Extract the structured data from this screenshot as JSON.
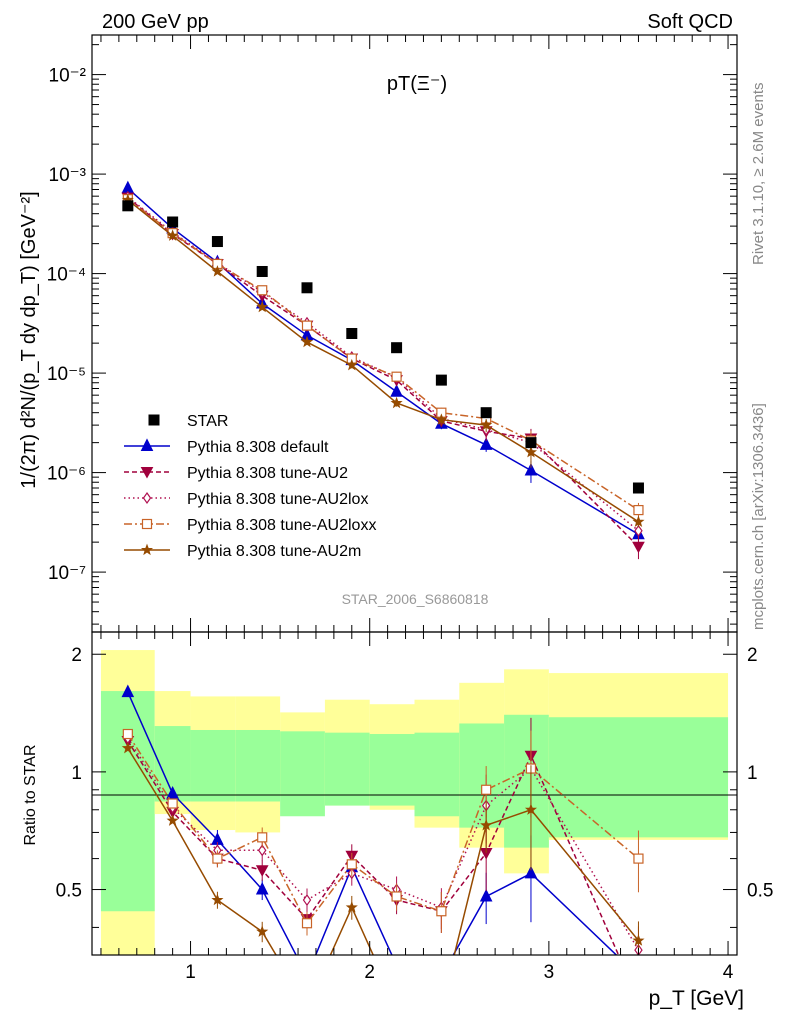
{
  "header": {
    "left": "200 GeV pp",
    "right": "Soft QCD"
  },
  "side_labels": {
    "rivet": "Rivet 3.1.10, ≥ 2.6M events",
    "mcplots": "mcplots.cern.ch [arXiv:1306.3436]"
  },
  "main_title": "pT(Ξ⁻)",
  "analysis_id": "STAR_2006_S6860818",
  "y_axis_label": "1/(2π) d²N/(p_T dy dp_T) [GeV⁻²]",
  "ratio_axis_label": "Ratio to STAR",
  "x_axis_label": "p_T [GeV]",
  "legend": [
    "STAR",
    "Pythia 8.308 default",
    "Pythia 8.308 tune-AU2",
    "Pythia 8.308 tune-AU2lox",
    "Pythia 8.308 tune-AU2loxx",
    "Pythia 8.308 tune-AU2m"
  ],
  "chart_data": {
    "type": "scatter",
    "x_range": [
      0.45,
      4.05
    ],
    "y_range_log": [
      2.5e-08,
      0.025
    ],
    "ratio_range": [
      0.34,
      2.28
    ],
    "log_y": true,
    "grid": false,
    "legend_position": "bottom-left",
    "y_tick_labels": [
      "10⁻⁷",
      "10⁻⁶",
      "10⁻⁵",
      "10⁻⁴",
      "10⁻³",
      "10⁻²"
    ],
    "y_ticks": [
      1e-07,
      1e-06,
      1e-05,
      0.0001,
      0.001,
      0.01
    ],
    "x_ticks": [
      1,
      2,
      3,
      4
    ],
    "x_tick_labels": [
      "1",
      "2",
      "3",
      "4"
    ],
    "ratio_ticks": [
      0.5,
      1,
      2
    ],
    "ratio_tick_labels": [
      "0.5",
      "1",
      "2"
    ],
    "star": {
      "name": "STAR",
      "color": "#000000",
      "x": [
        0.65,
        0.9,
        1.15,
        1.4,
        1.65,
        1.9,
        2.15,
        2.4,
        2.65,
        2.9,
        3.5
      ],
      "y": [
        0.00048,
        0.00033,
        0.00021,
        0.000105,
        7.2e-05,
        2.5e-05,
        1.8e-05,
        8.5e-06,
        4e-06,
        2e-06,
        7e-07
      ]
    },
    "bins": [
      0.5,
      0.8,
      1.0,
      1.25,
      1.5,
      1.75,
      2.0,
      2.25,
      2.5,
      2.75,
      3.0,
      4.0
    ],
    "band_green": [
      [
        0.44,
        1.61
      ],
      [
        0.84,
        1.31
      ],
      [
        0.84,
        1.28
      ],
      [
        0.84,
        1.28
      ],
      [
        0.77,
        1.27
      ],
      [
        0.82,
        1.26
      ],
      [
        0.82,
        1.25
      ],
      [
        0.77,
        1.26
      ],
      [
        0.72,
        1.33
      ],
      [
        0.64,
        1.4
      ],
      [
        0.68,
        1.38
      ]
    ],
    "band_yellow": [
      [
        0.27,
        2.05
      ],
      [
        0.78,
        1.61
      ],
      [
        0.71,
        1.56
      ],
      [
        0.7,
        1.56
      ],
      [
        0.87,
        1.42
      ],
      [
        0.82,
        1.53
      ],
      [
        0.8,
        1.49
      ],
      [
        0.72,
        1.53
      ],
      [
        0.64,
        1.69
      ],
      [
        0.55,
        1.83
      ],
      [
        0.67,
        1.79
      ]
    ],
    "series": [
      {
        "name": "Pythia 8.308 default",
        "color": "#0000cc",
        "dash": "",
        "marker": "triangle-up",
        "filled": true,
        "x": [
          0.65,
          0.9,
          1.15,
          1.4,
          1.65,
          1.9,
          2.15,
          2.4,
          2.65,
          2.9,
          3.5
        ],
        "y": [
          0.00072,
          0.000285,
          0.00013,
          5e-05,
          2.4e-05,
          1.35e-05,
          6.5e-06,
          3.1e-06,
          1.9e-06,
          1.05e-06,
          2.4e-07
        ],
        "err": [
          0,
          0,
          0.06,
          0.06,
          0,
          0.05,
          0.06,
          0.12,
          0.15,
          0.25,
          0.08
        ],
        "ratio": [
          1.6,
          0.88,
          0.67,
          0.5,
          0.3,
          0.57,
          0.32,
          0.3,
          0.48,
          0.55,
          0.3
        ]
      },
      {
        "name": "Pythia 8.308 tune-AU2",
        "color": "#a0003c",
        "dash": "5,3",
        "marker": "triangle-down",
        "filled": true,
        "x": [
          0.65,
          0.9,
          1.15,
          1.4,
          1.65,
          1.9,
          2.15,
          2.4,
          2.65,
          2.9,
          3.5
        ],
        "y": [
          0.00058,
          0.00025,
          0.000125,
          6e-05,
          3e-05,
          1.4e-05,
          8.5e-06,
          3.3e-06,
          2.6e-06,
          2.2e-06,
          1.8e-07
        ],
        "err": [
          0,
          0,
          0.05,
          0.06,
          0.07,
          0.07,
          0.08,
          0.12,
          0.2,
          0.25,
          0.25
        ],
        "ratio": [
          1.2,
          0.79,
          0.6,
          0.56,
          0.42,
          0.61,
          0.47,
          0.44,
          0.62,
          1.1,
          0.26
        ]
      },
      {
        "name": "Pythia 8.308 tune-AU2lox",
        "color": "#b01050",
        "dash": "1.5,3",
        "marker": "diamond",
        "filled": false,
        "x": [
          0.65,
          0.9,
          1.15,
          1.4,
          1.65,
          1.9,
          2.15,
          2.4,
          2.65,
          2.9,
          3.5
        ],
        "y": [
          0.00059,
          0.00026,
          0.000128,
          6.5e-05,
          3.2e-05,
          1.45e-05,
          9e-06,
          3.5e-06,
          2.7e-06,
          2e-06,
          2.6e-07
        ],
        "err": [
          0,
          0,
          0.05,
          0.06,
          0.07,
          0.07,
          0.08,
          0.12,
          0.2,
          0.25,
          0.15
        ],
        "ratio": [
          1.22,
          0.81,
          0.63,
          0.63,
          0.47,
          0.55,
          0.5,
          0.45,
          0.82,
          1.02,
          0.35
        ]
      },
      {
        "name": "Pythia 8.308 tune-AU2loxx",
        "color": "#c86428",
        "dash": "8,3,2,3",
        "marker": "square",
        "filled": false,
        "x": [
          0.65,
          0.9,
          1.15,
          1.4,
          1.65,
          1.9,
          2.15,
          2.4,
          2.65,
          2.9,
          3.5
        ],
        "y": [
          0.00056,
          0.000255,
          0.000125,
          6.8e-05,
          3e-05,
          1.4e-05,
          9.2e-06,
          4e-06,
          3.5e-06,
          2.1e-06,
          4.2e-07
        ],
        "err": [
          0,
          0,
          0.05,
          0.06,
          0.07,
          0.07,
          0.08,
          0.12,
          0.15,
          0.25,
          0.18
        ],
        "ratio": [
          1.25,
          0.83,
          0.6,
          0.68,
          0.41,
          0.58,
          0.48,
          0.44,
          0.9,
          1.02,
          0.6
        ]
      },
      {
        "name": "Pythia 8.308 tune-AU2m",
        "color": "#964b00",
        "dash": "",
        "marker": "star",
        "filled": true,
        "x": [
          0.65,
          0.9,
          1.15,
          1.4,
          1.65,
          1.9,
          2.15,
          2.4,
          2.65,
          2.9,
          3.5
        ],
        "y": [
          0.00055,
          0.00024,
          0.000105,
          4.6e-05,
          2.05e-05,
          1.2e-05,
          5e-06,
          3.4e-06,
          3e-06,
          1.6e-06,
          3.2e-07
        ],
        "err": [
          0,
          0,
          0.05,
          0.06,
          0.06,
          0.07,
          0.08,
          0.12,
          0.15,
          0.3,
          0.12
        ],
        "ratio": [
          1.15,
          0.75,
          0.47,
          0.39,
          0.25,
          0.45,
          0.25,
          0.25,
          0.73,
          0.8,
          0.37
        ]
      }
    ]
  }
}
